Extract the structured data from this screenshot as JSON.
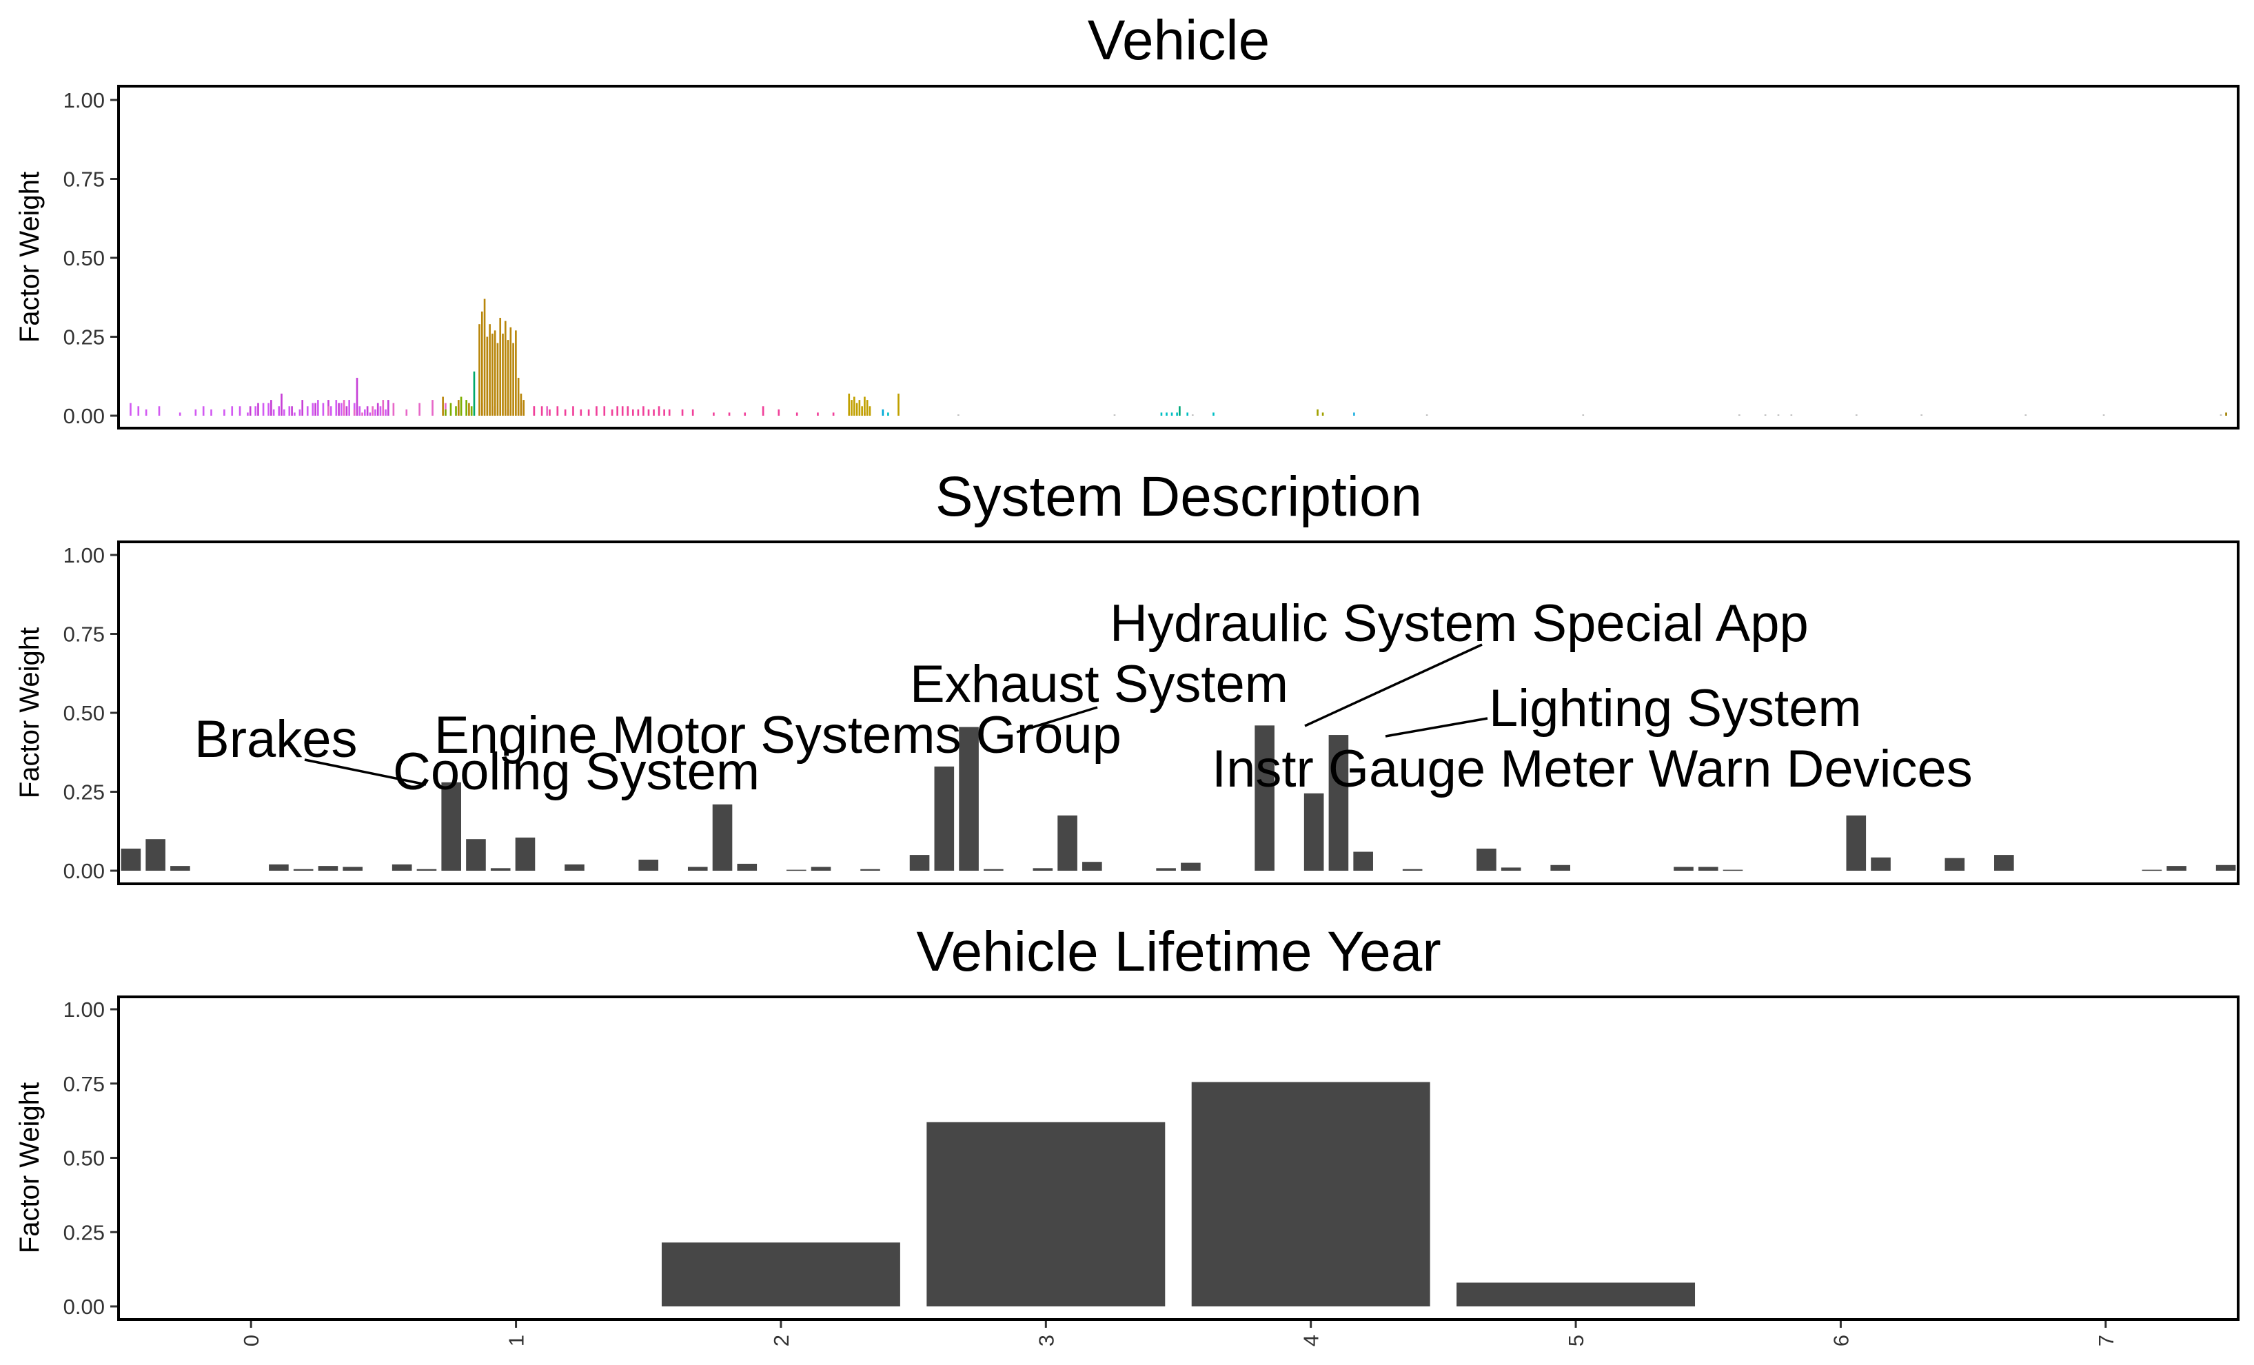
{
  "chart_data": [
    {
      "type": "bar",
      "title": "Vehicle",
      "ylabel": "Factor Weight",
      "ylim": [
        0,
        1.05
      ],
      "yticks": [
        "0.00",
        "0.25",
        "0.50",
        "0.75",
        "1.00"
      ],
      "x_range": [
        0,
        810
      ],
      "grid": false,
      "legend": "none",
      "x_tick_labels": "none",
      "bar_width": 0.7,
      "groups": [
        {
          "color": "#D25AF2",
          "x": [
            2,
            5,
            8,
            13,
            21,
            27,
            30,
            33,
            38,
            41,
            44,
            47,
            50,
            53,
            55,
            57,
            59,
            61,
            63,
            65,
            67,
            70,
            72,
            74,
            76,
            79,
            81,
            83,
            86,
            88,
            90,
            92,
            94,
            96,
            98,
            100
          ],
          "values": [
            0.04,
            0.03,
            0.02,
            0.03,
            0.01,
            0.02,
            0.03,
            0.02,
            0.02,
            0.03,
            0.03,
            0.01,
            0.03,
            0.04,
            0.04,
            0.02,
            0.03,
            0.02,
            0.03,
            0.01,
            0.02,
            0.03,
            0.04,
            0.05,
            0.04,
            0.03,
            0.05,
            0.04,
            0.05,
            0.04,
            0.03,
            0.02,
            0.01,
            0.02,
            0.03,
            0.02
          ]
        },
        {
          "color": "#C63FD6",
          "x": [
            48,
            51,
            56,
            60,
            64,
            68,
            73,
            78,
            82,
            85,
            89,
            93,
            97,
            101
          ],
          "values": [
            0.03,
            0.04,
            0.05,
            0.07,
            0.03,
            0.05,
            0.04,
            0.05,
            0.04,
            0.03,
            0.12,
            0.03,
            0.04,
            0.05
          ]
        },
        {
          "color": "#E768C8",
          "x": [
            78,
            84,
            88,
            91,
            95,
            99,
            103,
            108,
            113,
            118,
            123,
            128,
            133,
            137,
            142,
            147,
            152,
            157,
            162,
            166
          ],
          "values": [
            0.03,
            0.05,
            0.02,
            0.01,
            0.03,
            0.05,
            0.04,
            0.02,
            0.04,
            0.05,
            0.04,
            0.03,
            0.02,
            0.04,
            0.03,
            0.02,
            0.04,
            0.03,
            0.03,
            0.02
          ]
        },
        {
          "color": "#7CAE00",
          "x": [
            123,
            125,
            127,
            129,
            131,
            133
          ],
          "values": [
            0.02,
            0.04,
            0.03,
            0.06,
            0.05,
            0.03
          ]
        },
        {
          "color": "#00A86B",
          "x": [
            134
          ],
          "values": [
            0.14
          ]
        },
        {
          "color": "#B8860B",
          "x": [
            122,
            128,
            132,
            136,
            137,
            138,
            139,
            140,
            141,
            142,
            143,
            144,
            145,
            146,
            147,
            148,
            149,
            150,
            151,
            152,
            153
          ],
          "values": [
            0.06,
            0.05,
            0.04,
            0.29,
            0.33,
            0.37,
            0.25,
            0.29,
            0.26,
            0.27,
            0.23,
            0.31,
            0.26,
            0.3,
            0.24,
            0.28,
            0.23,
            0.27,
            0.12,
            0.07,
            0.05
          ]
        },
        {
          "color": "#F0409A",
          "x": [
            157,
            160,
            163,
            166,
            169,
            172,
            175,
            178,
            181,
            184,
            187,
            189,
            191,
            193,
            195,
            197,
            199,
            201,
            203,
            205,
            207,
            209,
            214,
            218,
            226,
            232,
            238,
            245,
            251,
            258,
            266,
            272,
            278,
            284
          ],
          "values": [
            0.03,
            0.03,
            0.02,
            0.03,
            0.02,
            0.03,
            0.02,
            0.02,
            0.03,
            0.03,
            0.02,
            0.03,
            0.03,
            0.03,
            0.02,
            0.02,
            0.03,
            0.02,
            0.02,
            0.03,
            0.02,
            0.02,
            0.02,
            0.02,
            0.01,
            0.01,
            0.01,
            0.03,
            0.02,
            0.01,
            0.01,
            0.01,
            0.01,
            0.01
          ]
        },
        {
          "color": "#C0A000",
          "x": [
            278,
            279,
            280,
            281,
            282,
            283,
            284,
            285,
            286,
            297
          ],
          "values": [
            0.07,
            0.05,
            0.06,
            0.04,
            0.05,
            0.03,
            0.06,
            0.05,
            0.03,
            0.07
          ]
        },
        {
          "color": "#00BFC4",
          "x": [
            293,
            398,
            400,
            402,
            404,
            408,
            418
          ],
          "values": [
            0.01,
            0.01,
            0.01,
            0.01,
            0.01,
            0.01,
            0.01
          ]
        },
        {
          "color": "#00A9D6",
          "x": [
            291
          ],
          "values": [
            0.02
          ]
        },
        {
          "color": "#00A87A",
          "x": [
            405
          ],
          "values": [
            0.03
          ]
        },
        {
          "color": "#A0A000",
          "x": [
            458,
            460
          ],
          "values": [
            0.02,
            0.01
          ]
        },
        {
          "color": "#20B0E0",
          "x": [
            472
          ],
          "values": [
            0.01
          ]
        },
        {
          "color": "#BBBBBB",
          "x": [
            320,
            380,
            410,
            500,
            560,
            620,
            630,
            635,
            640,
            665,
            690,
            730,
            760,
            805
          ],
          "values": [
            0.004,
            0.004,
            0.004,
            0.004,
            0.004,
            0.004,
            0.004,
            0.004,
            0.004,
            0.004,
            0.004,
            0.004,
            0.004,
            0.004
          ]
        },
        {
          "color": "#A08000",
          "x": [
            807
          ],
          "values": [
            0.01
          ]
        }
      ]
    },
    {
      "type": "bar",
      "title": "System Description",
      "ylabel": "Factor Weight",
      "ylim": [
        0,
        1.05
      ],
      "yticks": [
        "0.00",
        "0.25",
        "0.50",
        "0.75",
        "1.00"
      ],
      "grid": false,
      "legend": "none",
      "x_tick_labels": "none",
      "bar_width": 0.8,
      "values": [
        0.07,
        0.1,
        0.015,
        0.0,
        0.0,
        0.0,
        0.02,
        0.005,
        0.015,
        0.012,
        0.0,
        0.02,
        0.005,
        0.28,
        0.1,
        0.008,
        0.105,
        0.0,
        0.02,
        0.0,
        0.0,
        0.035,
        0.0,
        0.012,
        0.21,
        0.022,
        0.0,
        0.003,
        0.012,
        0.0,
        0.005,
        0.0,
        0.05,
        0.33,
        0.455,
        0.005,
        0.0,
        0.008,
        0.175,
        0.028,
        0.0,
        0.0,
        0.008,
        0.025,
        0.0,
        0.0,
        0.46,
        0.0,
        0.245,
        0.43,
        0.06,
        0.0,
        0.005,
        0.0,
        0.0,
        0.07,
        0.01,
        0.0,
        0.018,
        0.0,
        0.0,
        0.0,
        0.0,
        0.012,
        0.012,
        0.003,
        0.0,
        0.0,
        0.0,
        0.0,
        0.175,
        0.042,
        0.0,
        0.0,
        0.04,
        0.0,
        0.05,
        0.0,
        0.0,
        0.0,
        0.0,
        0.0,
        0.003,
        0.015,
        0.0,
        0.018
      ],
      "annotations": [
        {
          "text": "Brakes",
          "bar": 13
        },
        {
          "text": "Cooling System",
          "bar": 13
        },
        {
          "text": "Engine Motor Systems Group",
          "bar": 24
        },
        {
          "text": "Exhaust System",
          "bar": 34
        },
        {
          "text": "Hydraulic System Special App",
          "bar": 46
        },
        {
          "text": "Lighting System",
          "bar": 49
        },
        {
          "text": "Instr Gauge Meter Warn Devices",
          "bar": 48
        }
      ]
    },
    {
      "type": "bar",
      "title": "Vehicle Lifetime Year",
      "ylabel": "Factor Weight",
      "ylim": [
        0,
        1.05
      ],
      "yticks": [
        "0.00",
        "0.25",
        "0.50",
        "0.75",
        "1.00"
      ],
      "grid": false,
      "legend": "none",
      "categories": [
        "0",
        "1",
        "2",
        "3",
        "4",
        "5",
        "6",
        "7"
      ],
      "values": [
        0,
        0,
        0.215,
        0.62,
        0.755,
        0.08,
        0,
        0
      ]
    }
  ]
}
